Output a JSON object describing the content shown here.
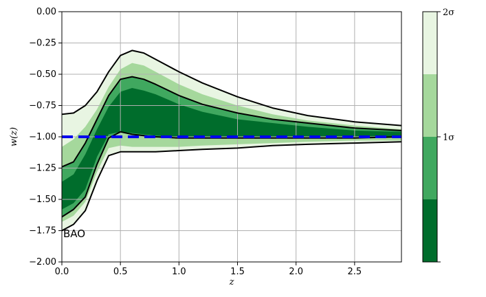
{
  "chart_data": {
    "type": "area",
    "title": "",
    "xlabel": "z",
    "ylabel": "w(z)",
    "xlim": [
      0.0,
      2.9
    ],
    "ylim": [
      -2.0,
      0.0
    ],
    "xticks": [
      0.0,
      0.5,
      1.0,
      1.5,
      2.0,
      2.5
    ],
    "xtick_labels": [
      "0.0",
      "0.5",
      "1.0",
      "1.5",
      "2.0",
      "2.5"
    ],
    "yticks": [
      0.0,
      -0.25,
      -0.5,
      -0.75,
      -1.0,
      -1.25,
      -1.5,
      -1.75,
      -2.0
    ],
    "ytick_labels": [
      "0.00",
      "−0.25",
      "−0.50",
      "−0.75",
      "−1.00",
      "−1.25",
      "−1.50",
      "−1.75",
      "−2.00"
    ],
    "grid": true,
    "annotation": "BAO",
    "reference_line": {
      "y": -1.0,
      "color": "#0000ee",
      "style": "dashed"
    },
    "z": [
      0.0,
      0.1,
      0.2,
      0.3,
      0.4,
      0.5,
      0.6,
      0.7,
      0.8,
      1.0,
      1.2,
      1.5,
      1.8,
      2.1,
      2.5,
      2.9
    ],
    "bands": [
      {
        "level": "2sigma",
        "upper": [
          -0.82,
          -0.81,
          -0.75,
          -0.64,
          -0.48,
          -0.35,
          -0.31,
          -0.33,
          -0.38,
          -0.48,
          -0.57,
          -0.68,
          -0.77,
          -0.83,
          -0.88,
          -0.91
        ],
        "lower": [
          -1.75,
          -1.7,
          -1.59,
          -1.35,
          -1.15,
          -1.12,
          -1.12,
          -1.12,
          -1.12,
          -1.11,
          -1.1,
          -1.09,
          -1.07,
          -1.06,
          -1.05,
          -1.04
        ]
      },
      {
        "level": "1.5sigma",
        "upper": [
          -1.08,
          -1.02,
          -0.92,
          -0.78,
          -0.6,
          -0.46,
          -0.41,
          -0.43,
          -0.48,
          -0.58,
          -0.66,
          -0.75,
          -0.82,
          -0.87,
          -0.91,
          -0.94
        ],
        "lower": [
          -1.68,
          -1.63,
          -1.52,
          -1.28,
          -1.09,
          -1.07,
          -1.08,
          -1.08,
          -1.08,
          -1.08,
          -1.07,
          -1.06,
          -1.05,
          -1.04,
          -1.03,
          -1.03
        ]
      },
      {
        "level": "1sigma",
        "upper": [
          -1.24,
          -1.2,
          -1.05,
          -0.86,
          -0.67,
          -0.54,
          -0.52,
          -0.54,
          -0.58,
          -0.67,
          -0.74,
          -0.81,
          -0.86,
          -0.89,
          -0.93,
          -0.95
        ],
        "lower": [
          -1.64,
          -1.58,
          -1.48,
          -1.22,
          -1.01,
          -0.96,
          -0.98,
          -0.99,
          -1.0,
          -1.01,
          -1.01,
          -1.01,
          -1.01,
          -1.01,
          -1.01,
          -1.0
        ]
      },
      {
        "level": "0.5sigma",
        "upper": [
          -1.36,
          -1.3,
          -1.14,
          -0.94,
          -0.76,
          -0.64,
          -0.61,
          -0.63,
          -0.66,
          -0.74,
          -0.8,
          -0.86,
          -0.89,
          -0.92,
          -0.95,
          -0.96
        ],
        "lower": [
          -1.58,
          -1.53,
          -1.42,
          -1.16,
          -0.98,
          -0.96,
          -0.97,
          -0.98,
          -0.99,
          -1.0,
          -1.0,
          -1.0,
          -1.0,
          -1.0,
          -1.0,
          -1.0
        ]
      }
    ],
    "colors": {
      "band_2sigma": "#e8f5e2",
      "band_1_5sigma": "#a5d89c",
      "band_1sigma": "#40a85f",
      "band_0_5sigma": "#006d2c",
      "contour": "#000000"
    },
    "colorbar": {
      "labels": [
        "2σ",
        "1σ"
      ],
      "segments": [
        "#e8f5e2",
        "#a5d89c",
        "#40a85f",
        "#006d2c"
      ]
    }
  }
}
